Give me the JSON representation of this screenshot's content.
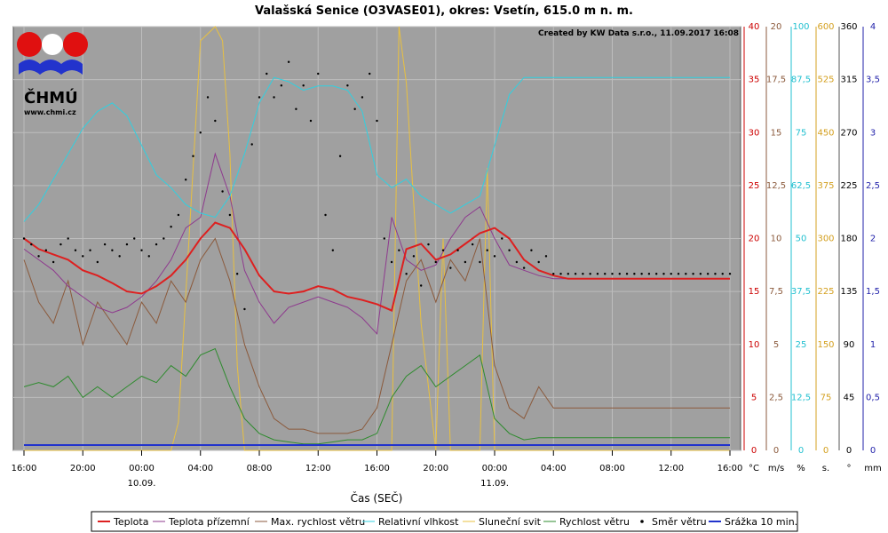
{
  "chart_data": {
    "type": "line",
    "title": "Valašská Senice (O3VASE01), okres: Vsetín, 615.0 m n. m.",
    "credit": "Created by KW Data s.r.o., 11.09.2017 16:08",
    "xlabel": "Čas (SEČ)",
    "logo": {
      "text": "ČHMÚ",
      "url": "www.chmi.cz"
    },
    "x_ticks": [
      "16:00",
      "20:00",
      "00:00",
      "04:00",
      "08:00",
      "12:00",
      "16:00",
      "20:00",
      "00:00",
      "04:00",
      "08:00",
      "12:00",
      "16:00"
    ],
    "date_labels": [
      {
        "label": "10.09.",
        "tick_index": 2
      },
      {
        "label": "11.09.",
        "tick_index": 8
      }
    ],
    "x_range_hours": [
      0,
      48
    ],
    "axes": [
      {
        "unit": "°C",
        "color": "#cc0000",
        "range": [
          0,
          40
        ],
        "ticks": [
          "0",
          "5",
          "10",
          "15",
          "20",
          "25",
          "30",
          "35",
          "40"
        ]
      },
      {
        "unit": "m/s",
        "color": "#8b5a3c",
        "range": [
          0,
          20
        ],
        "ticks": [
          "0",
          "2,5",
          "5",
          "7,5",
          "10",
          "12,5",
          "15",
          "17,5",
          "20"
        ]
      },
      {
        "unit": "%",
        "color": "#22c0d0",
        "range": [
          0,
          100
        ],
        "ticks": [
          "0",
          "12,5",
          "25",
          "37,5",
          "50",
          "62,5",
          "75",
          "87,5",
          "100"
        ]
      },
      {
        "unit": "s.",
        "color": "#d4a020",
        "range": [
          0,
          600
        ],
        "ticks": [
          "0",
          "75",
          "150",
          "225",
          "300",
          "375",
          "450",
          "525",
          "600"
        ]
      },
      {
        "unit": "°",
        "color": "#000000",
        "range": [
          0,
          360
        ],
        "ticks": [
          "0",
          "45",
          "90",
          "135",
          "180",
          "225",
          "270",
          "315",
          "360"
        ]
      },
      {
        "unit": "mm",
        "color": "#2222aa",
        "range": [
          0,
          4
        ],
        "ticks": [
          "0",
          "0,5",
          "1",
          "1,5",
          "2",
          "2,5",
          "3",
          "3,5",
          "4"
        ]
      }
    ],
    "series": [
      {
        "name": "Teplota",
        "axis": "°C",
        "color": "#dd2020",
        "width": 2,
        "x": [
          0,
          1,
          2,
          3,
          4,
          5,
          6,
          7,
          8,
          9,
          10,
          11,
          12,
          13,
          14,
          15,
          16,
          17,
          18,
          19,
          20,
          21,
          22,
          23,
          24,
          25,
          26,
          27,
          28,
          29,
          30,
          31,
          32,
          33,
          34,
          35,
          36,
          37,
          38,
          39,
          40,
          40.5,
          41,
          42,
          43,
          44,
          44.5,
          45,
          45.5,
          46,
          46.5,
          47,
          47.5,
          48
        ],
        "y": [
          20,
          19,
          18.5,
          18,
          17,
          16.5,
          15.8,
          15,
          14.8,
          15.5,
          16.5,
          18,
          20,
          21.5,
          21,
          19,
          16.5,
          15,
          14.8,
          15,
          15.5,
          15.2,
          14.5,
          14.2,
          13.8,
          13.2,
          19,
          19.5,
          18,
          18.5,
          19.5,
          20.5,
          21,
          20,
          18,
          17,
          16.5,
          16.2,
          16.2,
          16.2,
          16.2,
          16.2,
          16.2,
          16.2,
          16.2,
          16.2,
          16.2,
          16.2,
          16.2,
          16.2,
          16.2,
          16.2,
          16.2,
          16.2
        ]
      },
      {
        "name": "Teplota přízemní",
        "axis": "°C",
        "color": "#8e3a8e",
        "width": 1,
        "x": [
          0,
          1,
          2,
          3,
          4,
          5,
          6,
          7,
          8,
          9,
          10,
          11,
          12,
          13,
          14,
          15,
          16,
          17,
          18,
          19,
          20,
          21,
          22,
          23,
          24,
          25,
          26,
          27,
          28,
          29,
          30,
          31,
          32,
          33,
          34,
          35,
          36,
          37,
          38,
          39,
          40,
          41,
          42,
          43,
          44,
          45,
          46,
          47,
          48
        ],
        "y": [
          19,
          18,
          17,
          15.5,
          14.5,
          13.5,
          13,
          13.5,
          14.5,
          16,
          18,
          21,
          22,
          28,
          24,
          17,
          14,
          12,
          13.5,
          14,
          14.5,
          14,
          13.5,
          12.5,
          11,
          22,
          18,
          17,
          17.5,
          20,
          22,
          23,
          20,
          17.5,
          17,
          16.5,
          16.2,
          16.2,
          16.2,
          16.2,
          16.2,
          16.2,
          16.2,
          16.2,
          16.2,
          16.2,
          16.2,
          16.2,
          16.2
        ]
      },
      {
        "name": "Max. rychlost větru",
        "axis": "m/s",
        "color": "#8b5a3c",
        "width": 1,
        "x": [
          0,
          1,
          2,
          3,
          4,
          5,
          6,
          7,
          8,
          9,
          10,
          11,
          12,
          13,
          14,
          15,
          16,
          17,
          18,
          19,
          20,
          21,
          22,
          23,
          24,
          25,
          26,
          27,
          28,
          29,
          30,
          31,
          32,
          33,
          34,
          35,
          36,
          37,
          38,
          39,
          40,
          41,
          42,
          43,
          44,
          45,
          46,
          47,
          48
        ],
        "y": [
          9,
          7,
          6,
          8,
          5,
          7,
          6,
          5,
          7,
          6,
          8,
          7,
          9,
          10,
          8,
          5,
          3,
          1.5,
          1,
          1,
          0.8,
          0.8,
          0.8,
          1,
          2,
          5,
          8,
          9,
          7,
          9,
          8,
          10,
          4,
          2,
          1.5,
          3,
          2,
          2,
          2,
          2,
          2,
          2,
          2,
          2,
          2,
          2,
          2,
          2,
          2
        ]
      },
      {
        "name": "Relativní vlhkost",
        "axis": "%",
        "color": "#30d0e0",
        "width": 1,
        "x": [
          0,
          1,
          2,
          3,
          4,
          5,
          6,
          7,
          8,
          9,
          10,
          11,
          12,
          13,
          14,
          15,
          16,
          17,
          18,
          19,
          20,
          21,
          22,
          23,
          24,
          25,
          26,
          27,
          28,
          29,
          30,
          31,
          32,
          33,
          34,
          35,
          36,
          37,
          38,
          39,
          40,
          41,
          42,
          43,
          44,
          45,
          46,
          47,
          48
        ],
        "y": [
          54,
          58,
          64,
          70,
          76,
          80,
          82,
          79,
          72,
          65,
          62,
          58,
          56,
          55,
          60,
          70,
          82,
          88,
          87,
          85,
          86,
          86,
          85,
          80,
          65,
          62,
          64,
          60,
          58,
          56,
          58,
          60,
          72,
          84,
          88,
          88,
          88,
          88,
          88,
          88,
          88,
          88,
          88,
          88,
          88,
          88,
          88,
          88,
          88
        ]
      },
      {
        "name": "Sluneční svit",
        "axis": "s.",
        "color": "#e8c040",
        "width": 1,
        "x": [
          0,
          10,
          10.5,
          11,
          12,
          13,
          13.5,
          14,
          14.5,
          15,
          16,
          20,
          25,
          25.5,
          26,
          27,
          28,
          28.5,
          29,
          31,
          31.5,
          32,
          48
        ],
        "y": [
          0,
          0,
          40,
          220,
          580,
          600,
          580,
          420,
          120,
          0,
          0,
          0,
          0,
          600,
          520,
          180,
          0,
          300,
          0,
          0,
          400,
          0,
          0
        ]
      },
      {
        "name": "Rychlost větru",
        "axis": "m/s",
        "color": "#2e8b2e",
        "width": 1,
        "x": [
          0,
          1,
          2,
          3,
          4,
          5,
          6,
          7,
          8,
          9,
          10,
          11,
          12,
          13,
          14,
          15,
          16,
          17,
          18,
          19,
          20,
          21,
          22,
          23,
          24,
          25,
          26,
          27,
          28,
          29,
          30,
          31,
          32,
          33,
          34,
          35,
          36,
          37,
          38,
          39,
          40,
          41,
          42,
          43,
          44,
          45,
          46,
          47,
          48
        ],
        "y": [
          3,
          3.2,
          3,
          3.5,
          2.5,
          3,
          2.5,
          3,
          3.5,
          3.2,
          4,
          3.5,
          4.5,
          4.8,
          3,
          1.5,
          0.8,
          0.5,
          0.4,
          0.3,
          0.3,
          0.4,
          0.5,
          0.5,
          0.8,
          2.5,
          3.5,
          4,
          3,
          3.5,
          4,
          4.5,
          1.5,
          0.8,
          0.5,
          0.6,
          0.6,
          0.6,
          0.6,
          0.6,
          0.6,
          0.6,
          0.6,
          0.6,
          0.6,
          0.6,
          0.6,
          0.6,
          0.6
        ]
      },
      {
        "name": "Směr větru",
        "axis": "°",
        "color": "#000000",
        "type": "scatter",
        "x": [
          0,
          0.5,
          1,
          1.5,
          2,
          2.5,
          3,
          3.5,
          4,
          4.5,
          5,
          5.5,
          6,
          6.5,
          7,
          7.5,
          8,
          8.5,
          9,
          9.5,
          10,
          10.5,
          11,
          11.5,
          12,
          12.5,
          13,
          13.5,
          14,
          14.5,
          15,
          15.5,
          16,
          16.5,
          17,
          17.5,
          18,
          18.5,
          19,
          19.5,
          20,
          20.5,
          21,
          21.5,
          22,
          22.5,
          23,
          23.5,
          24,
          24.5,
          25,
          25.5,
          26,
          26.5,
          27,
          27.5,
          28,
          28.5,
          29,
          29.5,
          30,
          30.5,
          31,
          31.5,
          32,
          32.5,
          33,
          33.5,
          34,
          34.5,
          35,
          35.5,
          36,
          36.5,
          37,
          37.5,
          38,
          38.5,
          39,
          39.5,
          40,
          40.5,
          41,
          41.5,
          42,
          42.5,
          43,
          43.5,
          44,
          44.5,
          45,
          45.5,
          46,
          46.5,
          47,
          47.5,
          48
        ],
        "y": [
          180,
          175,
          165,
          170,
          160,
          175,
          180,
          170,
          165,
          170,
          160,
          175,
          170,
          165,
          175,
          180,
          170,
          165,
          175,
          180,
          190,
          200,
          230,
          250,
          270,
          300,
          280,
          220,
          200,
          150,
          120,
          260,
          300,
          320,
          300,
          310,
          330,
          290,
          310,
          280,
          320,
          200,
          170,
          250,
          310,
          290,
          300,
          320,
          280,
          180,
          160,
          170,
          150,
          165,
          140,
          175,
          160,
          170,
          155,
          170,
          160,
          175,
          160,
          170,
          165,
          180,
          170,
          160,
          155,
          170,
          160,
          165,
          150,
          150,
          150,
          150,
          150,
          150,
          150,
          150,
          150,
          150,
          150,
          150,
          150,
          150,
          150,
          150,
          150,
          150,
          150,
          150,
          150,
          150,
          150,
          150,
          150
        ]
      },
      {
        "name": "Srážka 10 min.",
        "axis": "mm",
        "color": "#2233cc",
        "width": 2,
        "x": [
          0,
          48
        ],
        "y": [
          0.05,
          0.05
        ]
      }
    ],
    "legend_placement": "bottom",
    "grid": true
  }
}
